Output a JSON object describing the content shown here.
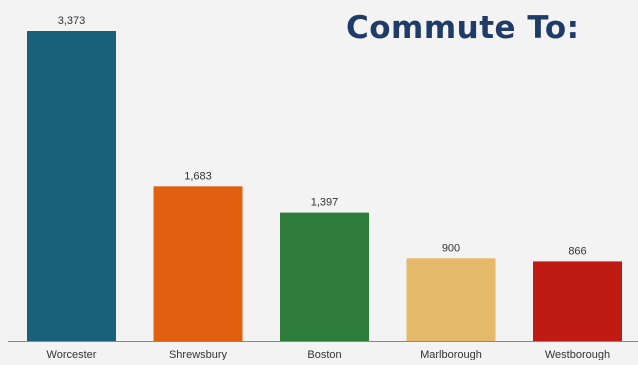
{
  "chart_data": {
    "type": "bar",
    "title": "Commute To:",
    "categories": [
      "Worcester",
      "Shrewsbury",
      "Boston",
      "Marlborough",
      "Westborough"
    ],
    "values": [
      3373,
      1683,
      1397,
      900,
      866
    ],
    "value_labels": [
      "3,373",
      "1,683",
      "1,397",
      "900",
      "866"
    ],
    "colors": [
      "#19617a",
      "#e06010",
      "#2f7d3a",
      "#e4b96a",
      "#c01b12"
    ],
    "xlabel": "",
    "ylabel": "",
    "ylim": [
      0,
      3373
    ],
    "grid": false,
    "legend": "none"
  }
}
